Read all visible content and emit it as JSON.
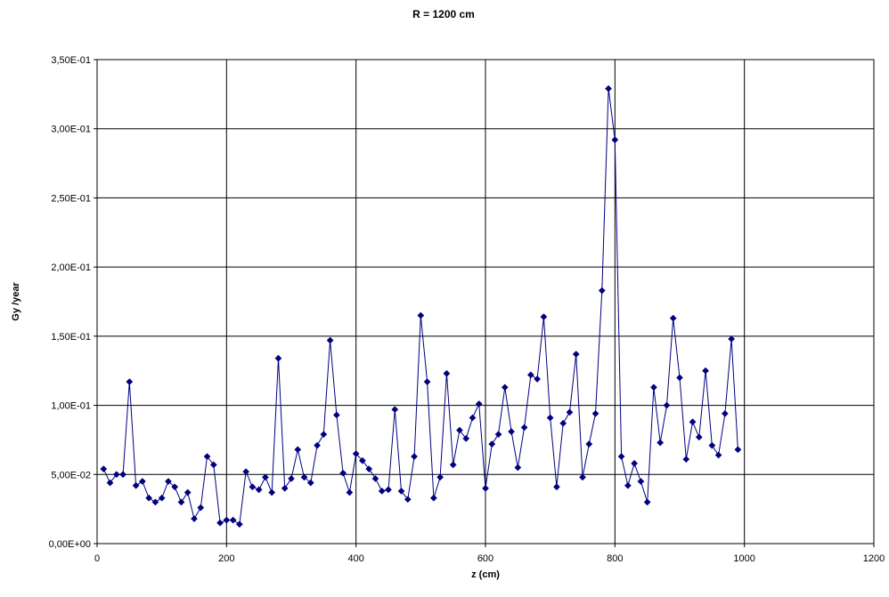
{
  "chart_data": {
    "type": "line",
    "title": "R = 1200 cm",
    "xlabel": "z (cm)",
    "ylabel": "Gy /year",
    "xlim": [
      0,
      1200
    ],
    "ylim": [
      0,
      0.35
    ],
    "xticks": [
      0,
      200,
      400,
      600,
      800,
      1000,
      1200
    ],
    "xtick_labels": [
      "0",
      "200",
      "400",
      "600",
      "800",
      "1000",
      "1200"
    ],
    "yticks": [
      0,
      0.05,
      0.1,
      0.15,
      0.2,
      0.25,
      0.3,
      0.35
    ],
    "ytick_labels": [
      "0,00E+00",
      "5,00E-02",
      "1,00E-01",
      "1,50E-01",
      "2,00E-01",
      "2,50E-01",
      "3,00E-01",
      "3,50E-01"
    ],
    "grid": true,
    "color": "#000080",
    "marker": "diamond",
    "series": [
      {
        "x": [
          10,
          20,
          30,
          40,
          50,
          60,
          70,
          80,
          90,
          100,
          110,
          120,
          130,
          140,
          150,
          160,
          170,
          180,
          190,
          200,
          210,
          220,
          230,
          240,
          250,
          260,
          270,
          280,
          290,
          300,
          310,
          320,
          330,
          340,
          350,
          360,
          370,
          380,
          390,
          400,
          410,
          420,
          430,
          440,
          450,
          460,
          470,
          480,
          490,
          500,
          510,
          520,
          530,
          540,
          550,
          560,
          570,
          580,
          590,
          600,
          610,
          620,
          630,
          640,
          650,
          660,
          670,
          680,
          690,
          700,
          710,
          720,
          730,
          740,
          750,
          760,
          770,
          780,
          790,
          800,
          810,
          820,
          830,
          840,
          850,
          860,
          870,
          880,
          890,
          900,
          910,
          920,
          930,
          940,
          950,
          960,
          970,
          980,
          990
        ],
        "y": [
          0.054,
          0.044,
          0.05,
          0.05,
          0.117,
          0.042,
          0.045,
          0.033,
          0.03,
          0.033,
          0.045,
          0.041,
          0.03,
          0.037,
          0.018,
          0.026,
          0.063,
          0.057,
          0.015,
          0.017,
          0.017,
          0.014,
          0.052,
          0.041,
          0.039,
          0.048,
          0.037,
          0.134,
          0.04,
          0.047,
          0.068,
          0.048,
          0.044,
          0.071,
          0.079,
          0.147,
          0.093,
          0.051,
          0.037,
          0.065,
          0.06,
          0.054,
          0.047,
          0.038,
          0.039,
          0.097,
          0.038,
          0.032,
          0.063,
          0.165,
          0.117,
          0.033,
          0.048,
          0.123,
          0.057,
          0.082,
          0.076,
          0.091,
          0.101,
          0.04,
          0.072,
          0.079,
          0.113,
          0.081,
          0.055,
          0.084,
          0.122,
          0.119,
          0.164,
          0.091,
          0.041,
          0.087,
          0.095,
          0.137,
          0.048,
          0.072,
          0.094,
          0.183,
          0.329,
          0.292,
          0.063,
          0.042,
          0.058,
          0.045,
          0.03,
          0.113,
          0.073,
          0.1,
          0.163,
          0.12,
          0.061,
          0.088,
          0.077,
          0.125,
          0.071,
          0.064,
          0.094,
          0.148,
          0.068
        ]
      }
    ]
  }
}
